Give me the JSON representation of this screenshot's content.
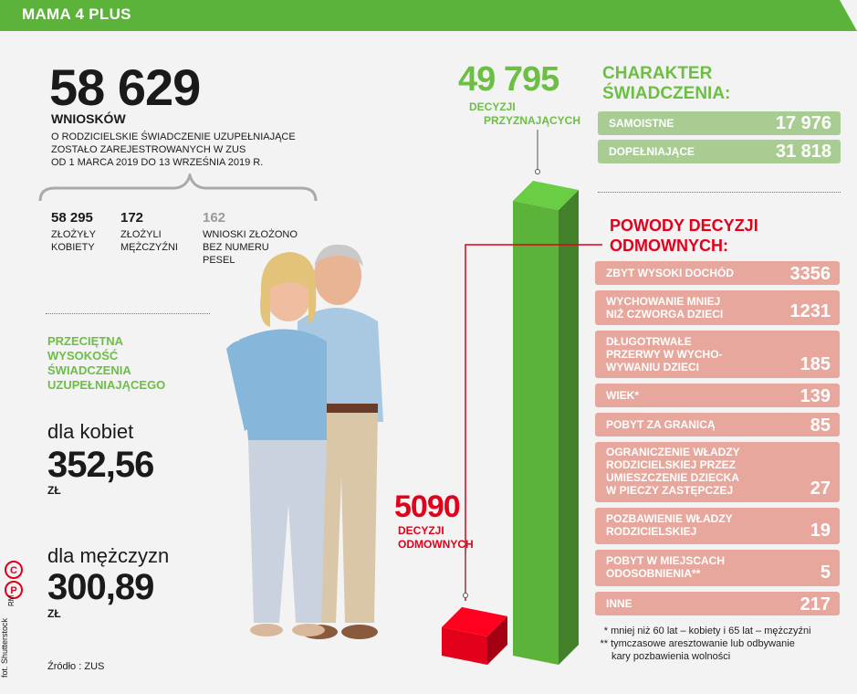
{
  "header": {
    "title": "MAMA 4 PLUS"
  },
  "applications": {
    "total": "58 629",
    "unit": "WNIOSKÓW",
    "description": [
      "O RODZICIELSKIE ŚWIADCZENIE UZUPEŁNIAJĄCE",
      "ZOSTAŁO ZAREJESTROWANYCH W ZUS",
      "OD 1 MARCA 2019 DO 13 WRZEŚNIA 2019 R."
    ],
    "breakdown": [
      {
        "value": "58 295",
        "label": [
          "ZŁOŻYŁY",
          "KOBIETY"
        ]
      },
      {
        "value": "172",
        "label": [
          "ZŁOŻYLI",
          "MĘŻCZYŹNI"
        ]
      },
      {
        "value": "162",
        "label": [
          "WNIOSKI ZŁOŻONO",
          "BEZ NUMERU",
          "PESEL"
        ]
      }
    ]
  },
  "average": {
    "heading": [
      "PRZECIĘTNA",
      "WYSOKOŚĆ",
      "ŚWIADCZENIA",
      "UZUPEŁNIAJĄCEGO"
    ],
    "women": {
      "label": "dla kobiet",
      "value": "352,56",
      "unit": "ZŁ"
    },
    "men": {
      "label": "dla mężczyzn",
      "value": "300,89",
      "unit": "ZŁ"
    }
  },
  "source": "Źródło : ZUS",
  "credits": {
    "photo": "fot. Shutterstock",
    "brand": "RM"
  },
  "chart_data": {
    "type": "bar",
    "categories": [
      "DECYZJI ODMOWNYCH",
      "DECYZJI PRZYZNAJĄCYCH"
    ],
    "values": [
      5090,
      49795
    ],
    "labels": [
      "5090",
      "49 795"
    ],
    "colors": [
      "#e2001a",
      "#5bb33a"
    ]
  },
  "granted": {
    "value": "49 795",
    "label": [
      "DECYZJI",
      "PRZYZNAJĄCYCH"
    ]
  },
  "refused": {
    "value": "5090",
    "label": [
      "DECYZJI",
      "ODMOWNYCH"
    ]
  },
  "character": {
    "heading": [
      "CHARAKTER",
      "ŚWIADCZENIA:"
    ],
    "items": [
      {
        "label": "SAMOISTNE",
        "value": "17 976"
      },
      {
        "label": "DOPEŁNIAJĄCE",
        "value": "31 818"
      }
    ]
  },
  "reasons": {
    "heading": [
      "POWODY DECYZJI",
      "ODMOWNYCH:"
    ],
    "items": [
      {
        "label": [
          "ZBYT WYSOKI DOCHÓD"
        ],
        "value": "3356"
      },
      {
        "label": [
          "WYCHOWANIE MNIEJ",
          "NIŻ CZWORGA DZIECI"
        ],
        "value": "1231"
      },
      {
        "label": [
          "DŁUGOTRWAŁE",
          "PRZERWY W WYCHO-",
          "WYWANIU DZIECI"
        ],
        "value": "185"
      },
      {
        "label": [
          "WIEK*"
        ],
        "value": "139"
      },
      {
        "label": [
          "POBYT ZA GRANICĄ"
        ],
        "value": "85"
      },
      {
        "label": [
          "OGRANICZENIE WŁADZY",
          "RODZICIELSKIEJ PRZEZ",
          "UMIESZCZENIE DZIECKA",
          "W PIECZY ZASTĘPCZEJ"
        ],
        "value": "27"
      },
      {
        "label": [
          "POZBAWIENIE WŁADZY",
          "RODZICIELSKIEJ"
        ],
        "value": "19"
      },
      {
        "label": [
          "POBYT W MIEJSCACH",
          "ODOSOBNIENIA**"
        ],
        "value": "5"
      },
      {
        "label": [
          "INNE"
        ],
        "value": "217"
      }
    ],
    "footnotes": [
      {
        "mark": "*",
        "text": [
          "mniej niż 60 lat – kobiety i 65 lat – mężczyźni"
        ]
      },
      {
        "mark": "**",
        "text": [
          "tymczasowe aresztowanie lub odbywanie",
          "kary pozbawienia wolności"
        ]
      }
    ]
  },
  "colors": {
    "green": "#6cbf44",
    "red": "#e2001a",
    "pill_green": "#a9cc93",
    "pill_pink": "#e7a79c"
  }
}
